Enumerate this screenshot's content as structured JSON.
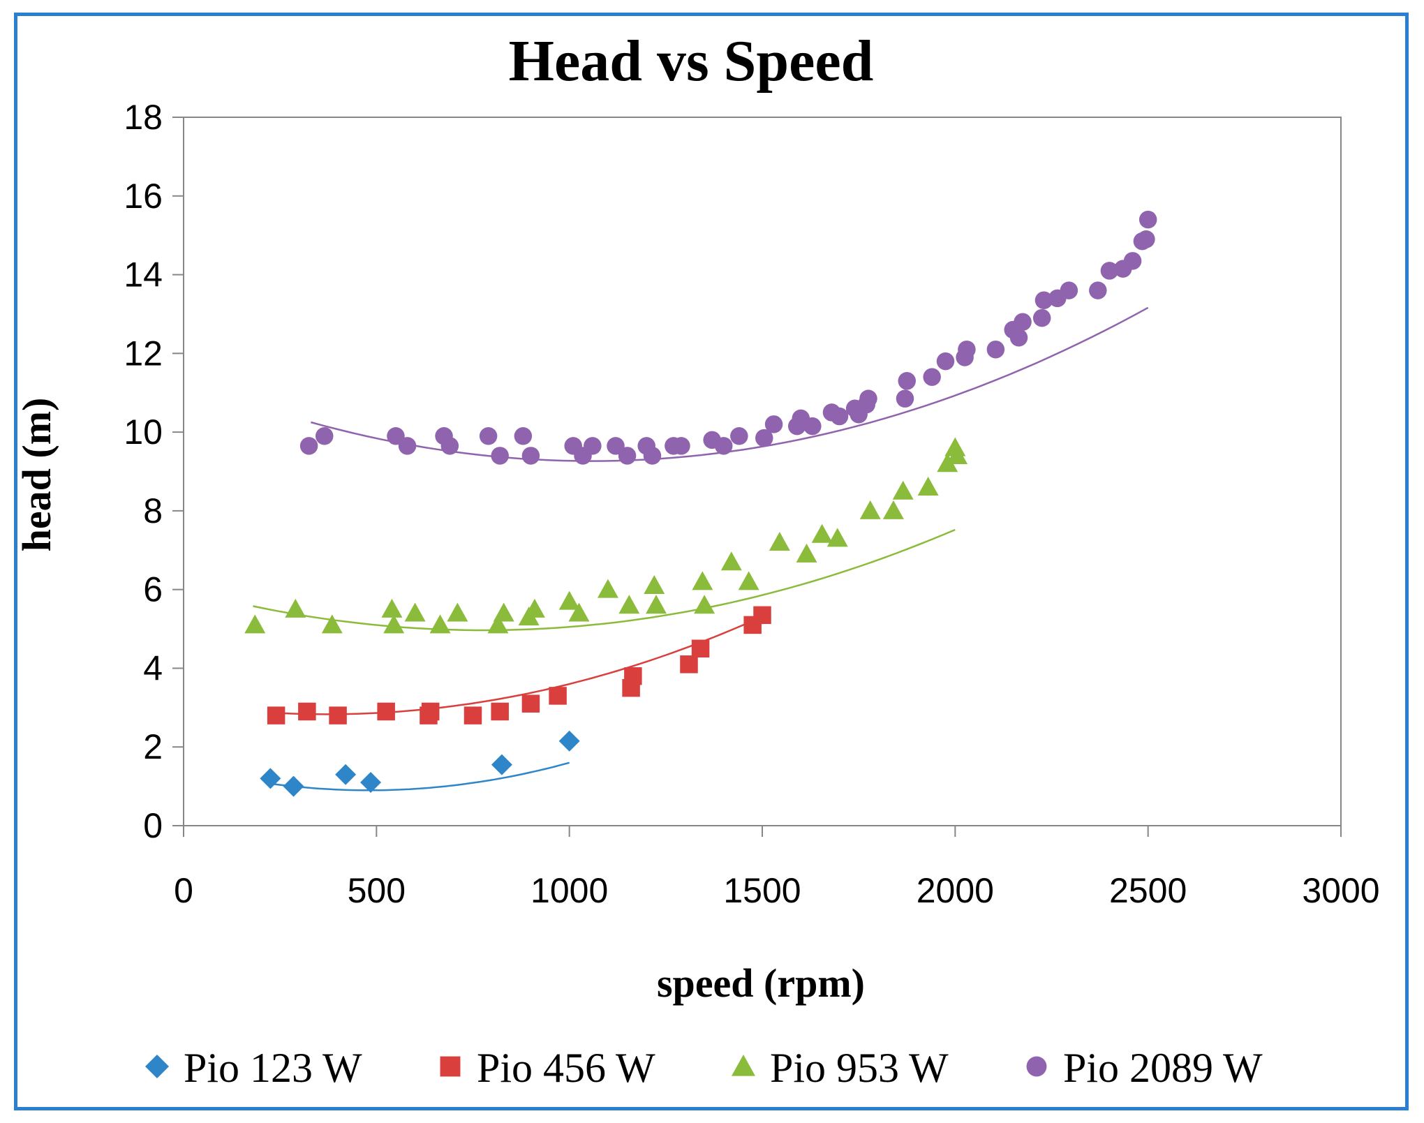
{
  "chart_data": {
    "type": "scatter",
    "title": "Head vs Speed",
    "xlabel": "speed (rpm)",
    "ylabel": "head (m)",
    "xlim": [
      0,
      3000
    ],
    "ylim": [
      0,
      18
    ],
    "xticks": [
      0,
      500,
      1000,
      1500,
      2000,
      2500,
      3000
    ],
    "yticks": [
      0,
      2,
      4,
      6,
      8,
      10,
      12,
      14,
      16,
      18
    ],
    "grid": false,
    "legend": "bottom",
    "series": [
      {
        "name": "Pio 123 W",
        "color": "#2e86c8",
        "marker": "diamond",
        "x": [
          225,
          285,
          420,
          485,
          825,
          1000
        ],
        "y": [
          1.2,
          1.0,
          1.3,
          1.1,
          1.55,
          2.15
        ],
        "trend": {
          "x": [
            225,
            1000
          ],
          "coef": [
            1.5,
            -0.0025,
            2.6e-06
          ]
        }
      },
      {
        "name": "Pio 456 W",
        "color": "#d9403d",
        "marker": "square",
        "x": [
          240,
          320,
          400,
          525,
          635,
          640,
          750,
          820,
          900,
          970,
          1160,
          1165,
          1310,
          1340,
          1475,
          1500
        ],
        "y": [
          2.8,
          2.9,
          2.8,
          2.9,
          2.8,
          2.9,
          2.8,
          2.9,
          3.1,
          3.3,
          3.5,
          3.8,
          4.1,
          4.5,
          5.1,
          5.35
        ],
        "trend": {
          "x": [
            240,
            1500
          ],
          "coef": [
            3.1,
            -0.00145,
            1.95e-06
          ]
        }
      },
      {
        "name": "Pio 953 W",
        "color": "#8bbb3a",
        "marker": "triangle",
        "x": [
          185,
          290,
          385,
          540,
          545,
          600,
          665,
          710,
          815,
          830,
          895,
          910,
          1000,
          1025,
          1100,
          1155,
          1220,
          1225,
          1345,
          1350,
          1420,
          1465,
          1545,
          1615,
          1655,
          1695,
          1780,
          1840,
          1865,
          1930,
          1980,
          2000,
          2005
        ],
        "y": [
          5.1,
          5.5,
          5.1,
          5.5,
          5.1,
          5.4,
          5.1,
          5.4,
          5.1,
          5.4,
          5.3,
          5.5,
          5.7,
          5.4,
          6.0,
          5.6,
          6.1,
          5.6,
          6.2,
          5.6,
          6.7,
          6.2,
          7.2,
          6.9,
          7.4,
          7.3,
          8.0,
          8.0,
          8.5,
          8.6,
          9.2,
          9.6,
          9.4
        ],
        "trend": {
          "x": [
            180,
            2000
          ],
          "coef": [
            6.0,
            -0.00266,
            1.71e-06
          ]
        }
      },
      {
        "name": "Pio 2089 W",
        "color": "#8f63ad",
        "marker": "circle",
        "x": [
          325,
          365,
          550,
          580,
          675,
          690,
          790,
          820,
          880,
          900,
          1010,
          1035,
          1060,
          1120,
          1150,
          1200,
          1215,
          1270,
          1290,
          1370,
          1400,
          1440,
          1505,
          1530,
          1590,
          1600,
          1630,
          1680,
          1700,
          1740,
          1750,
          1770,
          1775,
          1870,
          1875,
          1940,
          1975,
          2025,
          2030,
          2105,
          2150,
          2165,
          2175,
          2225,
          2230,
          2265,
          2295,
          2370,
          2400,
          2435,
          2460,
          2485,
          2495,
          2500
        ],
        "y": [
          9.65,
          9.9,
          9.9,
          9.65,
          9.9,
          9.65,
          9.9,
          9.4,
          9.9,
          9.4,
          9.65,
          9.4,
          9.65,
          9.65,
          9.4,
          9.65,
          9.4,
          9.65,
          9.65,
          9.8,
          9.65,
          9.9,
          9.85,
          10.2,
          10.15,
          10.35,
          10.15,
          10.5,
          10.4,
          10.6,
          10.45,
          10.7,
          10.85,
          10.85,
          11.3,
          11.4,
          11.8,
          11.9,
          12.1,
          12.1,
          12.6,
          12.4,
          12.8,
          12.9,
          13.35,
          13.4,
          13.6,
          13.6,
          14.1,
          14.15,
          14.35,
          14.85,
          14.9,
          15.4
        ],
        "trend": {
          "x": [
            330,
            2500
          ],
          "coef": [
            11.35,
            -0.00395,
            1.87e-06
          ]
        }
      }
    ]
  }
}
